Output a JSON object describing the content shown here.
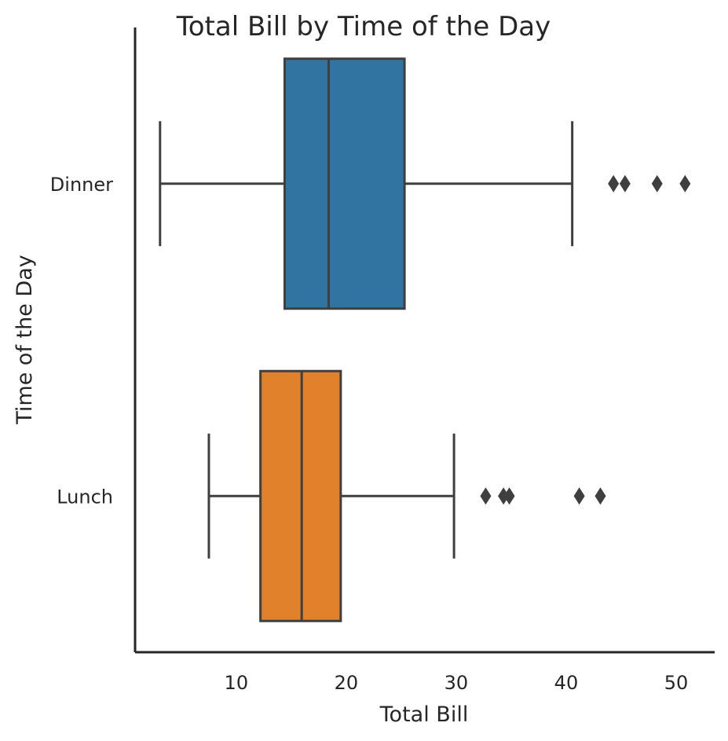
{
  "chart_data": {
    "type": "boxplot",
    "orientation": "horizontal",
    "title": "Total Bill by Time of the Day",
    "xlabel": "Total Bill",
    "ylabel": "Time of the Day",
    "xlim": [
      0.8,
      53.5
    ],
    "xticks": [
      10,
      20,
      30,
      40,
      50
    ],
    "grid": false,
    "categories": [
      "Dinner",
      "Lunch"
    ],
    "boxes": [
      {
        "category": "Dinner",
        "color": "#3274a1",
        "whisker_low": 3.07,
        "q1": 14.4,
        "median": 18.4,
        "q3": 25.3,
        "whisker_high": 40.55,
        "outliers": [
          44.3,
          45.35,
          48.27,
          50.81
        ]
      },
      {
        "category": "Lunch",
        "color": "#e1812c",
        "whisker_low": 7.51,
        "q1": 12.2,
        "median": 15.95,
        "q3": 19.5,
        "whisker_high": 29.8,
        "outliers": [
          32.68,
          34.3,
          34.83,
          41.19,
          43.11
        ]
      }
    ]
  }
}
